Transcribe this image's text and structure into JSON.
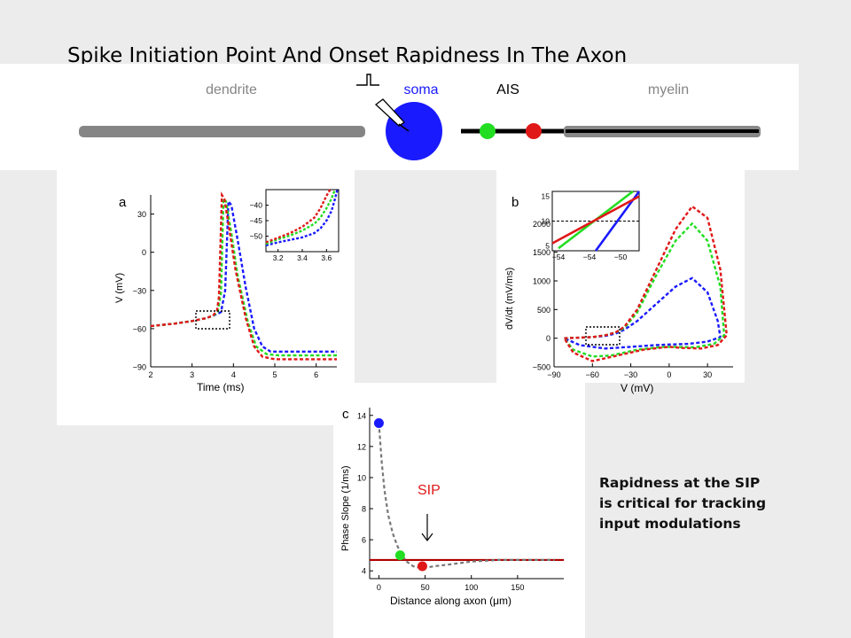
{
  "slide": {
    "title": "Spike Initiation Point And Onset Rapidness In The Axon",
    "caption_lines": [
      "Rapidness at the SIP",
      "is critical for tracking",
      "input modulations"
    ]
  },
  "colors": {
    "blue": "#1a1aff",
    "green": "#22dd22",
    "red": "#e01818",
    "gray": "#777777",
    "dendrite_gray": "#858585",
    "sip_red": "#b00000"
  },
  "neuron": {
    "labels": {
      "dendrite": "dendrite",
      "soma": "soma",
      "ais": "AIS",
      "myelin": "myelin"
    }
  },
  "chart_data": [
    {
      "panel": "a",
      "type": "line",
      "xlabel": "Time (ms)",
      "ylabel": "V (mV)",
      "xlim": [
        2,
        6.5
      ],
      "ylim": [
        -90,
        45
      ],
      "xticks": [
        2,
        3,
        4,
        5,
        6
      ],
      "yticks": [
        -90,
        -60,
        -30,
        0,
        30
      ],
      "series": [
        {
          "color": "red",
          "dash": true,
          "x": [
            2.0,
            2.6,
            3.0,
            3.3,
            3.5,
            3.6,
            3.65,
            3.72,
            3.78,
            3.9,
            4.05,
            4.3,
            4.5,
            4.7,
            5.0,
            5.5,
            6.0,
            6.5
          ],
          "y": [
            -58,
            -56,
            -54,
            -52,
            -50,
            -46,
            -35,
            45,
            42,
            18,
            -14,
            -52,
            -74,
            -82,
            -84,
            -84,
            -84,
            -84
          ]
        },
        {
          "color": "green",
          "dash": true,
          "x": [
            2.0,
            2.6,
            3.0,
            3.3,
            3.5,
            3.62,
            3.7,
            3.76,
            3.82,
            3.95,
            4.1,
            4.35,
            4.55,
            4.8,
            5.1,
            5.5,
            6.0,
            6.5
          ],
          "y": [
            -58,
            -56,
            -54,
            -52,
            -50,
            -47,
            -32,
            42,
            40,
            15,
            -18,
            -55,
            -74,
            -80,
            -81,
            -81,
            -81,
            -81
          ]
        },
        {
          "color": "blue",
          "dash": true,
          "x": [
            2.0,
            2.6,
            3.0,
            3.3,
            3.5,
            3.7,
            3.8,
            3.88,
            3.95,
            4.1,
            4.3,
            4.5,
            4.7,
            4.9,
            5.2,
            5.6,
            6.0,
            6.5
          ],
          "y": [
            -58,
            -56,
            -54,
            -52,
            -50,
            -47,
            -30,
            40,
            37,
            10,
            -28,
            -60,
            -74,
            -78,
            -78,
            -78,
            -78,
            -78
          ]
        }
      ],
      "inset": {
        "xlim": [
          3.1,
          3.7
        ],
        "ylim": [
          -55,
          -35
        ],
        "xticks": [
          3.2,
          3.4,
          3.6
        ],
        "yticks": [
          -50,
          -45,
          -40
        ],
        "series": [
          {
            "color": "red",
            "x": [
              3.1,
              3.2,
              3.3,
              3.4,
              3.5,
              3.55,
              3.6,
              3.63
            ],
            "y": [
              -52,
              -50.5,
              -49,
              -47,
              -44,
              -41,
              -37,
              -35
            ]
          },
          {
            "color": "green",
            "x": [
              3.1,
              3.2,
              3.3,
              3.4,
              3.5,
              3.55,
              3.6,
              3.64,
              3.67
            ],
            "y": [
              -52.5,
              -51,
              -49.8,
              -48.2,
              -46,
              -44,
              -41,
              -38,
              -35
            ]
          },
          {
            "color": "blue",
            "x": [
              3.1,
              3.2,
              3.3,
              3.4,
              3.5,
              3.55,
              3.6,
              3.64,
              3.67,
              3.69
            ],
            "y": [
              -53,
              -52,
              -51.2,
              -50.4,
              -49,
              -47.5,
              -45,
              -42,
              -38,
              -35
            ]
          }
        ]
      }
    },
    {
      "panel": "b",
      "type": "line",
      "xlabel": "V (mV)",
      "ylabel": "dV/dt (mV/ms)",
      "xlim": [
        -90,
        50
      ],
      "ylim": [
        -500,
        2500
      ],
      "xticks": [
        -90,
        -60,
        -30,
        0,
        30
      ],
      "yticks": [
        -500,
        0,
        500,
        1000,
        1500,
        2000
      ],
      "series": [
        {
          "color": "red",
          "dash": true,
          "x": [
            -82,
            -70,
            -60,
            -50,
            -42,
            -35,
            -25,
            -10,
            5,
            18,
            30,
            40,
            45,
            38,
            25,
            10,
            0,
            -20,
            -40,
            -60,
            -75,
            -82
          ],
          "y": [
            0,
            10,
            20,
            50,
            100,
            200,
            500,
            1200,
            1900,
            2300,
            2100,
            1200,
            50,
            -120,
            -180,
            -170,
            -150,
            -200,
            -300,
            -400,
            -250,
            0
          ]
        },
        {
          "color": "green",
          "dash": true,
          "x": [
            -82,
            -70,
            -60,
            -50,
            -42,
            -35,
            -25,
            -10,
            5,
            18,
            30,
            40,
            43,
            35,
            20,
            5,
            -5,
            -25,
            -45,
            -60,
            -75,
            -82
          ],
          "y": [
            0,
            10,
            20,
            50,
            100,
            180,
            450,
            1100,
            1700,
            2000,
            1700,
            900,
            50,
            -100,
            -160,
            -150,
            -150,
            -200,
            -300,
            -320,
            -200,
            0
          ]
        },
        {
          "color": "blue",
          "dash": true,
          "x": [
            -82,
            -70,
            -60,
            -50,
            -42,
            -35,
            -25,
            -10,
            5,
            18,
            30,
            38,
            40,
            30,
            15,
            0,
            -10,
            -30,
            -50,
            -70,
            -82
          ],
          "y": [
            0,
            10,
            20,
            40,
            80,
            150,
            300,
            600,
            900,
            1050,
            800,
            300,
            20,
            -60,
            -100,
            -110,
            -120,
            -150,
            -180,
            -120,
            0
          ]
        }
      ],
      "inset": {
        "xlim": [
          -56,
          -49
        ],
        "ylim": [
          4,
          16
        ],
        "xticks_label": [
          "-54",
          "-54",
          "-50"
        ],
        "yticks": [
          5,
          10,
          15
        ],
        "hline": 10,
        "series": [
          {
            "color": "blue",
            "x": [
              -52.5,
              -49
            ],
            "y": [
              4,
              16
            ]
          },
          {
            "color": "green",
            "x": [
              -55.5,
              -49.5
            ],
            "y": [
              4.5,
              16
            ]
          },
          {
            "color": "red",
            "x": [
              -56,
              -49
            ],
            "y": [
              5.5,
              15
            ]
          }
        ]
      }
    },
    {
      "panel": "c",
      "type": "scatter",
      "xlabel": "Distance along axon (μm)",
      "ylabel": "Phase Slope (1/ms)",
      "xlim": [
        -10,
        200
      ],
      "ylim": [
        3.5,
        14.5
      ],
      "xticks": [
        0,
        50,
        100,
        150
      ],
      "yticks": [
        4,
        6,
        8,
        10,
        12,
        14
      ],
      "points": [
        {
          "color": "blue",
          "x": 0,
          "y": 13.5
        },
        {
          "color": "green",
          "x": 23,
          "y": 5.0
        },
        {
          "color": "red",
          "x": 47,
          "y": 4.3
        }
      ],
      "fit_curve": {
        "x": [
          0,
          3,
          6,
          10,
          15,
          20,
          25,
          30,
          37,
          44,
          50,
          60,
          75,
          100,
          130,
          160,
          190
        ],
        "y": [
          13.5,
          11.0,
          9.2,
          7.6,
          6.4,
          5.6,
          5.0,
          4.6,
          4.3,
          4.2,
          4.2,
          4.3,
          4.4,
          4.6,
          4.7,
          4.7,
          4.7
        ]
      },
      "reference_line": {
        "y": 4.7
      },
      "annotation": {
        "label": "SIP",
        "x": 47
      }
    }
  ]
}
